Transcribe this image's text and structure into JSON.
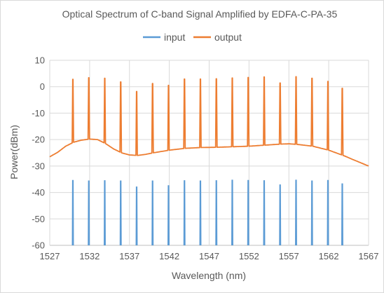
{
  "chart_data": {
    "type": "line",
    "title": "Optical Spectrum of C-band Signal Amplified by EDFA-C-PA-35",
    "xlabel": "Wavelength (nm)",
    "ylabel": "Power(dBm)",
    "xlim": [
      1527,
      1567
    ],
    "ylim": [
      -60,
      10
    ],
    "x_ticks": [
      1527,
      1532,
      1537,
      1542,
      1547,
      1552,
      1557,
      1562,
      1567
    ],
    "y_ticks": [
      10,
      0,
      -10,
      -20,
      -30,
      -40,
      -50,
      -60
    ],
    "grid": "vertical-and-horizontal",
    "legend_position": "top",
    "series": [
      {
        "name": "input",
        "color": "#5b9bd5",
        "noise_floor": -60,
        "peaks": [
          {
            "x": 1529.9,
            "y": -35.5
          },
          {
            "x": 1531.9,
            "y": -35.7
          },
          {
            "x": 1533.9,
            "y": -35.6
          },
          {
            "x": 1535.9,
            "y": -35.7
          },
          {
            "x": 1537.9,
            "y": -38.0
          },
          {
            "x": 1539.9,
            "y": -35.7
          },
          {
            "x": 1541.9,
            "y": -37.5
          },
          {
            "x": 1543.9,
            "y": -35.6
          },
          {
            "x": 1545.9,
            "y": -35.7
          },
          {
            "x": 1547.9,
            "y": -35.6
          },
          {
            "x": 1549.9,
            "y": -35.4
          },
          {
            "x": 1551.9,
            "y": -35.5
          },
          {
            "x": 1553.9,
            "y": -35.6
          },
          {
            "x": 1555.9,
            "y": -37.2
          },
          {
            "x": 1557.9,
            "y": -35.4
          },
          {
            "x": 1559.9,
            "y": -35.7
          },
          {
            "x": 1561.9,
            "y": -35.5
          },
          {
            "x": 1563.7,
            "y": -36.8
          }
        ]
      },
      {
        "name": "output",
        "color": "#ed7d31",
        "baseline": [
          {
            "x": 1527,
            "y": -26.5
          },
          {
            "x": 1528,
            "y": -24.8
          },
          {
            "x": 1529,
            "y": -22.5
          },
          {
            "x": 1530,
            "y": -21.0
          },
          {
            "x": 1531,
            "y": -20.2
          },
          {
            "x": 1532,
            "y": -19.8
          },
          {
            "x": 1533,
            "y": -20.0
          },
          {
            "x": 1534,
            "y": -21.5
          },
          {
            "x": 1535,
            "y": -23.5
          },
          {
            "x": 1536,
            "y": -25.0
          },
          {
            "x": 1537,
            "y": -25.8
          },
          {
            "x": 1538,
            "y": -26.0
          },
          {
            "x": 1539,
            "y": -25.6
          },
          {
            "x": 1540,
            "y": -25.0
          },
          {
            "x": 1542,
            "y": -24.0
          },
          {
            "x": 1544,
            "y": -23.3
          },
          {
            "x": 1546,
            "y": -23.0
          },
          {
            "x": 1548,
            "y": -22.9
          },
          {
            "x": 1550,
            "y": -22.7
          },
          {
            "x": 1552,
            "y": -22.5
          },
          {
            "x": 1554,
            "y": -22.1
          },
          {
            "x": 1556,
            "y": -21.7
          },
          {
            "x": 1557,
            "y": -21.6
          },
          {
            "x": 1558,
            "y": -21.8
          },
          {
            "x": 1560,
            "y": -22.5
          },
          {
            "x": 1562,
            "y": -24.0
          },
          {
            "x": 1564,
            "y": -26.2
          },
          {
            "x": 1565,
            "y": -27.5
          },
          {
            "x": 1567,
            "y": -30.0
          }
        ],
        "peaks": [
          {
            "x": 1529.9,
            "y": 2.8
          },
          {
            "x": 1531.9,
            "y": 3.4
          },
          {
            "x": 1533.9,
            "y": 3.2
          },
          {
            "x": 1535.9,
            "y": 1.8
          },
          {
            "x": 1537.9,
            "y": -1.8
          },
          {
            "x": 1539.9,
            "y": 1.2
          },
          {
            "x": 1541.9,
            "y": 0.5
          },
          {
            "x": 1543.9,
            "y": 2.9
          },
          {
            "x": 1545.9,
            "y": 2.9
          },
          {
            "x": 1547.9,
            "y": 3.0
          },
          {
            "x": 1549.9,
            "y": 3.3
          },
          {
            "x": 1551.9,
            "y": 3.5
          },
          {
            "x": 1553.9,
            "y": 3.7
          },
          {
            "x": 1555.9,
            "y": 1.4
          },
          {
            "x": 1557.9,
            "y": 3.8
          },
          {
            "x": 1559.9,
            "y": 3.2
          },
          {
            "x": 1561.9,
            "y": 2.0
          },
          {
            "x": 1563.7,
            "y": -0.6
          }
        ]
      }
    ]
  }
}
